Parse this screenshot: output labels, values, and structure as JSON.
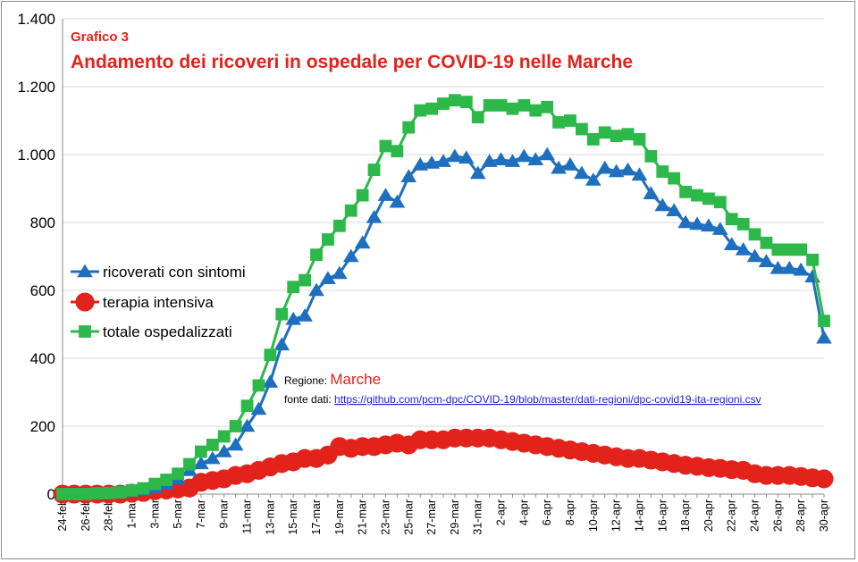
{
  "chart_data": {
    "type": "line",
    "subtitle": "Grafico 3",
    "title": "Andamento dei ricoveri in ospedale  per COVID-19 nelle Marche",
    "ylim": [
      0,
      1400
    ],
    "yticks": [
      0,
      200,
      400,
      600,
      800,
      1000,
      1200,
      1400
    ],
    "ytick_labels": [
      "0",
      "200",
      "400",
      "600",
      "800",
      "1.000",
      "1.200",
      "1.400"
    ],
    "grid": "horizontal",
    "legend_position": "left",
    "x": [
      "24-feb",
      "25-feb",
      "26-feb",
      "27-feb",
      "28-feb",
      "29-feb",
      "1-mar",
      "2-mar",
      "3-mar",
      "4-mar",
      "5-mar",
      "6-mar",
      "7-mar",
      "8-mar",
      "9-mar",
      "10-mar",
      "11-mar",
      "12-mar",
      "13-mar",
      "14-mar",
      "15-mar",
      "16-mar",
      "17-mar",
      "18-mar",
      "19-mar",
      "20-mar",
      "21-mar",
      "22-mar",
      "23-mar",
      "24-mar",
      "25-mar",
      "26-mar",
      "27-mar",
      "28-mar",
      "29-mar",
      "30-mar",
      "31-mar",
      "1-apr",
      "2-apr",
      "3-apr",
      "4-apr",
      "5-apr",
      "6-apr",
      "7-apr",
      "8-apr",
      "9-apr",
      "10-apr",
      "11-apr",
      "12-apr",
      "13-apr",
      "14-apr",
      "15-apr",
      "16-apr",
      "17-apr",
      "18-apr",
      "19-apr",
      "20-apr",
      "21-apr",
      "22-apr",
      "23-apr",
      "24-apr",
      "25-apr",
      "26-apr",
      "27-apr",
      "28-apr",
      "29-apr",
      "30-apr"
    ],
    "xtick_labels": [
      "24-feb",
      "26-feb",
      "28-feb",
      "1-mar",
      "3-mar",
      "5-mar",
      "7-mar",
      "9-mar",
      "11-mar",
      "13-mar",
      "15-mar",
      "17-mar",
      "19-mar",
      "21-mar",
      "23-mar",
      "25-mar",
      "27-mar",
      "29-mar",
      "31-mar",
      "2-apr",
      "4-apr",
      "6-apr",
      "8-apr",
      "10-apr",
      "12-apr",
      "14-apr",
      "16-apr",
      "18-apr",
      "20-apr",
      "22-apr",
      "24-apr",
      "26-apr",
      "28-apr",
      "30-apr"
    ],
    "series": [
      {
        "name": "ricoverati con sintomi",
        "color": "#1f6fbf",
        "marker": "triangle",
        "values": [
          0,
          0,
          0,
          2,
          3,
          5,
          8,
          12,
          20,
          30,
          45,
          70,
          90,
          105,
          125,
          145,
          200,
          250,
          330,
          440,
          515,
          525,
          600,
          635,
          650,
          700,
          740,
          815,
          880,
          860,
          935,
          970,
          975,
          980,
          995,
          990,
          945,
          980,
          985,
          980,
          995,
          985,
          1000,
          960,
          970,
          945,
          925,
          960,
          950,
          955,
          940,
          885,
          850,
          835,
          800,
          795,
          790,
          780,
          735,
          720,
          700,
          685,
          665,
          665,
          660,
          640,
          460
        ]
      },
      {
        "name": "terapia intensiva",
        "color": "#e3221b",
        "marker": "circle",
        "values": [
          0,
          0,
          0,
          0,
          0,
          0,
          3,
          5,
          10,
          12,
          15,
          18,
          35,
          40,
          45,
          55,
          60,
          70,
          80,
          90,
          95,
          105,
          105,
          115,
          140,
          135,
          140,
          140,
          145,
          150,
          145,
          160,
          160,
          160,
          165,
          165,
          165,
          165,
          160,
          155,
          150,
          145,
          140,
          135,
          130,
          125,
          120,
          115,
          110,
          105,
          105,
          100,
          95,
          90,
          85,
          82,
          78,
          76,
          72,
          70,
          60,
          55,
          55,
          55,
          52,
          48,
          45
        ]
      },
      {
        "name": "totale ospedalizzati",
        "color": "#2db84a",
        "marker": "square",
        "values": [
          0,
          0,
          0,
          2,
          3,
          5,
          11,
          17,
          30,
          42,
          60,
          88,
          125,
          145,
          170,
          200,
          260,
          320,
          410,
          530,
          610,
          630,
          705,
          750,
          790,
          835,
          880,
          955,
          1025,
          1010,
          1080,
          1130,
          1135,
          1150,
          1160,
          1155,
          1110,
          1145,
          1145,
          1135,
          1145,
          1130,
          1140,
          1095,
          1100,
          1075,
          1045,
          1065,
          1055,
          1060,
          1045,
          995,
          950,
          930,
          890,
          880,
          870,
          860,
          810,
          795,
          765,
          740,
          720,
          720,
          720,
          690,
          510
        ]
      }
    ],
    "annotations": {
      "region_label": "Regione: ",
      "region_value": "Marche",
      "source_label": "fonte dati: ",
      "source_link": "https://github.com/pcm-dpc/COVID-19/blob/master/dati-regioni/dpc-covid19-ita-regioni.csv"
    }
  }
}
